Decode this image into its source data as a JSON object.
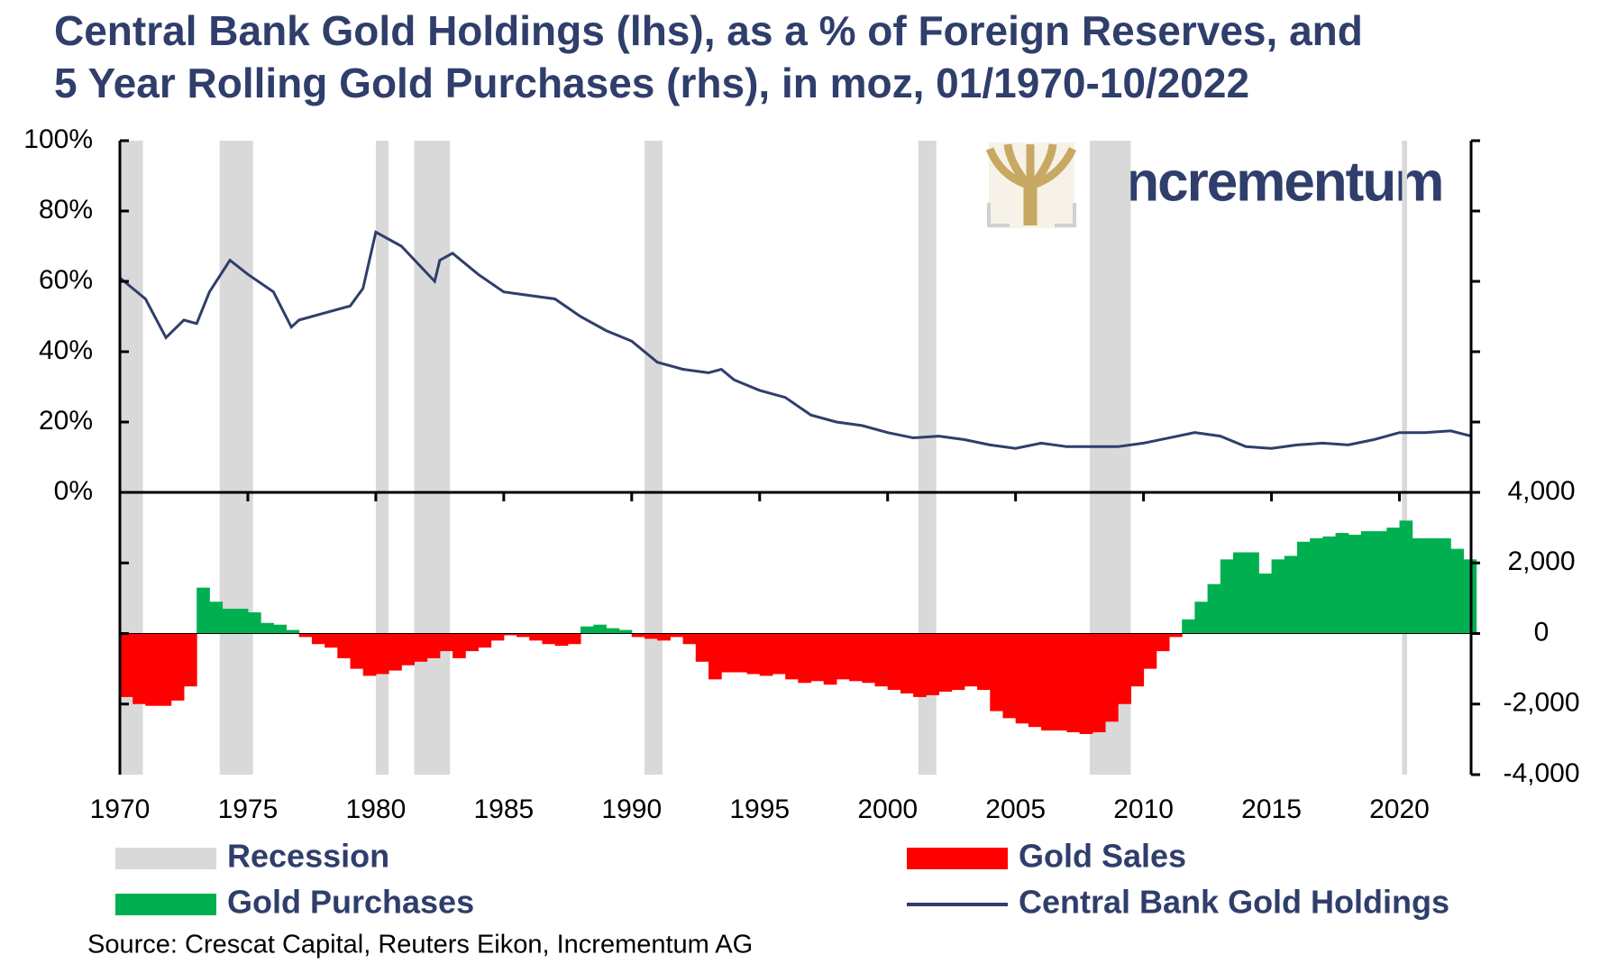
{
  "chart_data": [
    {
      "type": "line",
      "title": [
        "Central Bank Gold Holdings (lhs), as a % of Foreign Reserves, and",
        "5 Year Rolling Gold Purchases (rhs), in moz, 01/1970-10/2022"
      ],
      "brand": "incrementum",
      "source": "Source: Crescat Capital, Reuters Eikon, Incrementum AG",
      "recessions": {
        "name": "Recession",
        "color": "#d9d9d9",
        "periods": [
          [
            1970,
            1970.9
          ],
          [
            1973.9,
            1975.2
          ],
          [
            1980,
            1980.5
          ],
          [
            1981.5,
            1982.9
          ],
          [
            1990.5,
            1991.2
          ],
          [
            2001.2,
            2001.9
          ],
          [
            2007.9,
            2009.5
          ],
          [
            2020.1,
            2020.3
          ]
        ]
      },
      "xlim": [
        1970,
        2022.8
      ],
      "ylim": [
        0,
        100
      ],
      "yticks": [
        {
          "value": 0,
          "label": "0%"
        },
        {
          "value": 20,
          "label": "20%"
        },
        {
          "value": 40,
          "label": "40%"
        },
        {
          "value": 60,
          "label": "60%"
        },
        {
          "value": 80,
          "label": "80%"
        },
        {
          "value": 100,
          "label": "100%"
        }
      ],
      "series": [
        {
          "name": "Central Bank Gold Holdings",
          "color": "#2f3e6b",
          "x": [
            1970,
            1971,
            1971.8,
            1972.5,
            1973,
            1973.5,
            1974.3,
            1975,
            1976,
            1976.7,
            1977,
            1978,
            1979,
            1979.5,
            1980,
            1981,
            1982.3,
            1982.5,
            1983,
            1984,
            1985,
            1986,
            1987,
            1988,
            1989,
            1990,
            1991,
            1992,
            1993,
            1993.5,
            1994,
            1995,
            1996,
            1997,
            1998,
            1999,
            2000,
            2001,
            2002,
            2003,
            2004,
            2005,
            2006,
            2007,
            2008,
            2009,
            2010,
            2011,
            2012,
            2013,
            2014,
            2015,
            2016,
            2017,
            2018,
            2019,
            2020,
            2021,
            2022,
            2022.8
          ],
          "values": [
            61,
            55,
            44,
            49,
            48,
            57,
            66,
            62,
            57,
            47,
            49,
            51,
            53,
            58,
            74,
            70,
            60,
            66,
            68,
            62,
            57,
            56,
            55,
            50,
            46,
            43,
            37,
            35,
            34,
            35,
            32,
            29,
            27,
            22,
            20,
            19,
            17,
            15.5,
            16,
            15,
            13.5,
            12.5,
            14,
            13,
            13,
            13,
            14,
            15.5,
            17,
            16,
            13,
            12.5,
            13.5,
            14,
            13.5,
            15,
            17,
            17,
            17.5,
            16
          ]
        }
      ]
    },
    {
      "type": "bar",
      "xlim": [
        1970,
        2022.8
      ],
      "xticks": [
        1970,
        1975,
        1980,
        1985,
        1990,
        1995,
        2000,
        2005,
        2010,
        2015,
        2020
      ],
      "y2lim": [
        -4000,
        4000
      ],
      "y2ticks": [
        {
          "value": -4000,
          "label": "-4,000"
        },
        {
          "value": -2000,
          "label": "-2,000"
        },
        0,
        {
          "value": 2000,
          "label": "2,000"
        },
        {
          "value": 4000,
          "label": "4,000"
        }
      ],
      "x": [
        1970,
        1970.5,
        1971,
        1971.5,
        1972,
        1972.5,
        1973,
        1973.5,
        1974,
        1974.5,
        1975,
        1975.5,
        1976,
        1976.5,
        1977,
        1977.5,
        1978,
        1978.5,
        1979,
        1979.5,
        1980,
        1980.5,
        1981,
        1981.5,
        1982,
        1982.5,
        1983,
        1983.5,
        1984,
        1984.5,
        1985,
        1985.5,
        1986,
        1986.5,
        1987,
        1987.5,
        1988,
        1988.5,
        1989,
        1989.5,
        1990,
        1990.5,
        1991,
        1991.5,
        1992,
        1992.5,
        1993,
        1993.5,
        1994,
        1994.5,
        1995,
        1995.5,
        1996,
        1996.5,
        1997,
        1997.5,
        1998,
        1998.5,
        1999,
        1999.5,
        2000,
        2000.5,
        2001,
        2001.5,
        2002,
        2002.5,
        2003,
        2003.5,
        2004,
        2004.5,
        2005,
        2005.5,
        2006,
        2006.5,
        2007,
        2007.5,
        2008,
        2008.5,
        2009,
        2009.5,
        2010,
        2010.5,
        2011,
        2011.5,
        2012,
        2012.5,
        2013,
        2013.5,
        2014,
        2014.5,
        2015,
        2015.5,
        2016,
        2016.5,
        2017,
        2017.5,
        2018,
        2018.5,
        2019,
        2019.5,
        2020,
        2020.5,
        2021,
        2021.5,
        2022,
        2022.5
      ],
      "series": [
        {
          "name": "Gold Sales",
          "color": "#ff0000",
          "axis": "y2",
          "values": [
            -1800,
            -2000,
            -2050,
            -2050,
            -1900,
            -1500,
            null,
            null,
            null,
            null,
            null,
            null,
            null,
            null,
            -100,
            -300,
            -400,
            -700,
            -1000,
            -1200,
            -1150,
            -1050,
            -900,
            -800,
            -700,
            -500,
            -700,
            -500,
            -400,
            -200,
            -50,
            -100,
            -200,
            -300,
            -350,
            -300,
            null,
            null,
            null,
            null,
            -100,
            -150,
            -200,
            -100,
            -300,
            -800,
            -1300,
            -1100,
            -1100,
            -1150,
            -1200,
            -1150,
            -1300,
            -1400,
            -1350,
            -1450,
            -1300,
            -1350,
            -1400,
            -1500,
            -1600,
            -1700,
            -1800,
            -1750,
            -1650,
            -1600,
            -1500,
            -1600,
            -2200,
            -2400,
            -2550,
            -2650,
            -2750,
            -2750,
            -2800,
            -2850,
            -2800,
            -2500,
            -2000,
            -1500,
            -1000,
            -500,
            -100,
            null,
            null,
            null,
            null,
            null,
            null,
            null,
            null,
            null,
            null,
            null,
            null,
            null,
            null,
            null,
            null,
            null,
            null,
            null,
            null,
            null,
            null,
            null
          ]
        },
        {
          "name": "Gold Purchases",
          "color": "#00b050",
          "axis": "y2",
          "values": [
            null,
            null,
            null,
            null,
            null,
            null,
            1300,
            900,
            700,
            700,
            600,
            300,
            250,
            100,
            null,
            null,
            null,
            null,
            null,
            null,
            null,
            null,
            null,
            null,
            null,
            null,
            null,
            null,
            null,
            null,
            null,
            null,
            null,
            null,
            null,
            null,
            200,
            250,
            150,
            100,
            null,
            null,
            null,
            null,
            null,
            null,
            null,
            null,
            null,
            null,
            null,
            null,
            null,
            null,
            null,
            null,
            null,
            null,
            null,
            null,
            null,
            null,
            null,
            null,
            null,
            null,
            null,
            null,
            null,
            null,
            null,
            null,
            null,
            null,
            null,
            null,
            null,
            null,
            null,
            null,
            null,
            null,
            null,
            400,
            900,
            1400,
            2100,
            2300,
            2300,
            1700,
            2100,
            2200,
            2600,
            2700,
            2750,
            2850,
            2800,
            2900,
            2900,
            3000,
            3200,
            2700,
            2700,
            2700,
            2400,
            2100
          ]
        }
      ]
    }
  ]
}
